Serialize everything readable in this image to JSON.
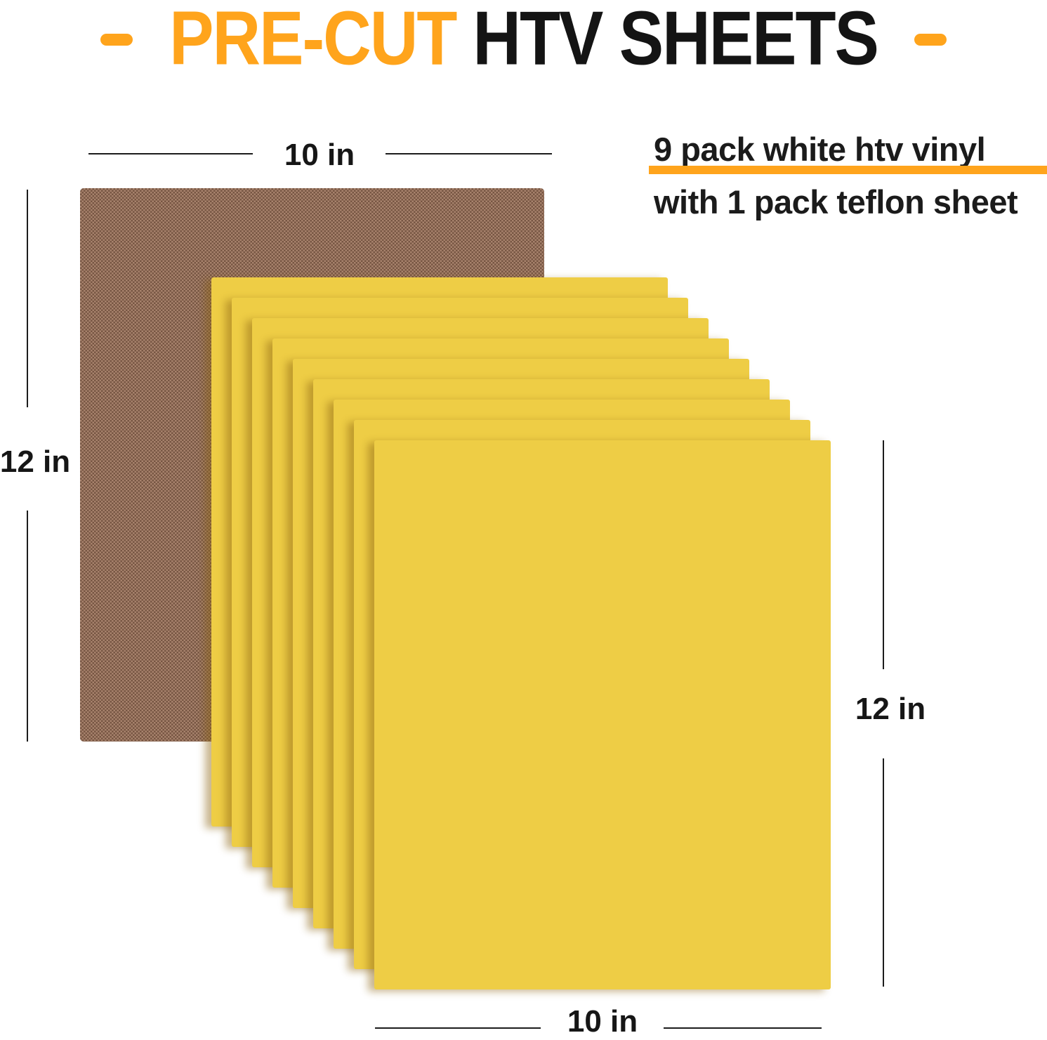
{
  "title": {
    "highlight": "PRE-CUT",
    "rest": "HTV SHEETS"
  },
  "note": {
    "line1": "9 pack white htv vinyl",
    "line2": "with 1 pack teflon sheet"
  },
  "dimensions": {
    "teflon_width": "10 in",
    "teflon_height": "12 in",
    "vinyl_height": "12 in",
    "vinyl_width": "10 in"
  },
  "stack": {
    "sheet_count": 9
  },
  "colors": {
    "accent_orange": "#FFA41C",
    "vinyl_yellow": "#EECD45",
    "teflon_brown": "#96705A",
    "text_black": "#1B1B1B"
  }
}
